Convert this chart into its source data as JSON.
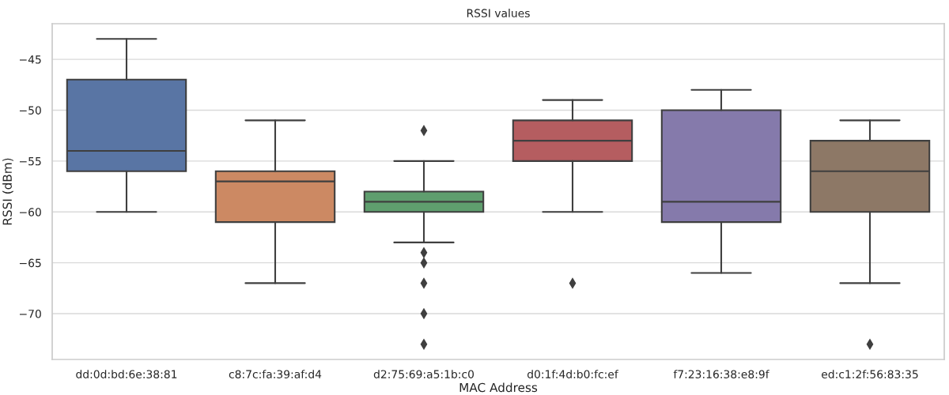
{
  "chart_data": {
    "type": "box",
    "title": "RSSI values",
    "xlabel": "MAC Address",
    "ylabel": "RSSI (dBm)",
    "categories": [
      "dd:0d:bd:6e:38:81",
      "c8:7c:fa:39:af:d4",
      "d2:75:69:a5:1b:c0",
      "d0:1f:4d:b0:fc:ef",
      "f7:23:16:38:e8:9f",
      "ed:c1:2f:56:83:35"
    ],
    "colors": [
      "#5975a4",
      "#cc8963",
      "#5f9e6e",
      "#b55d60",
      "#857aab",
      "#8d7866"
    ],
    "boxes": [
      {
        "low": -60,
        "q1": -56,
        "median": -54,
        "q3": -47,
        "high": -43
      },
      {
        "low": -67,
        "q1": -61,
        "median": -57,
        "q3": -56,
        "high": -51
      },
      {
        "low": -63,
        "q1": -60,
        "median": -59,
        "q3": -58,
        "high": -55,
        "outliers": [
          -52,
          -64,
          -65,
          -67,
          -70,
          -73
        ]
      },
      {
        "low": -60,
        "q1": -55,
        "median": -53,
        "q3": -51,
        "high": -49,
        "outliers": [
          -67
        ]
      },
      {
        "low": -66,
        "q1": -61,
        "median": -59,
        "q3": -50,
        "high": -48
      },
      {
        "low": -67,
        "q1": -60,
        "median": -56,
        "q3": -53,
        "high": -51,
        "outliers": [
          -73
        ]
      }
    ],
    "ylim": [
      -74.5,
      -41.5
    ],
    "yticks": [
      -70,
      -65,
      -60,
      -55,
      -50,
      -45
    ],
    "grid": "y",
    "legend": false
  }
}
